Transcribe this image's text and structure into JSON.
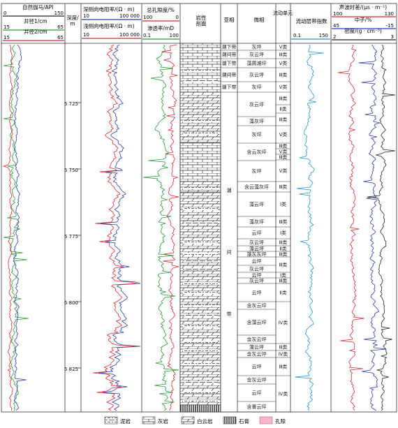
{
  "colors": {
    "green": "#2a9a3a",
    "red": "#d62a36",
    "blue": "#2a3fa6",
    "cyan": "#2a96d6",
    "black": "#222222",
    "pink": "#f2b8c8"
  },
  "headers": {
    "gr": {
      "title": "自然伽马/API",
      "min": "0",
      "max": "150"
    },
    "cal1": {
      "title": "井径1/cm",
      "min": "15",
      "max": "65"
    },
    "cal2": {
      "title": "井径2/cm",
      "min": "15",
      "max": "65"
    },
    "depth": {
      "title": "深度/\nm"
    },
    "lld": {
      "title": "深侧向电阻率/(Ω · m)",
      "min": "10",
      "max": "100 000"
    },
    "lls": {
      "title": "浅侧向电阻率/(Ω · m)",
      "min": "10",
      "max": "100 000"
    },
    "por": {
      "title": "总孔隙度/%",
      "min": "100",
      "max": "0"
    },
    "perm": {
      "title": "渗透率/mD",
      "min": "0.1",
      "max": "100"
    },
    "litho": {
      "title": "岩性\n剖面"
    },
    "subfacies": {
      "title": "亚相"
    },
    "microfacies": {
      "title": "微相"
    },
    "unit": {
      "title": "流动单元"
    },
    "fzi": {
      "title": "流动层带指数",
      "min": "0.1",
      "max": "150"
    },
    "ac": {
      "title": "声波时差/(μs · m⁻¹)",
      "min": "100",
      "max": "130"
    },
    "cnl": {
      "title": "中子/%",
      "min": "45",
      "max": "-15"
    },
    "den": {
      "title": "密度/(g · cm⁻³)",
      "min": "2",
      "max": "3"
    }
  },
  "depth_ticks": [
    "5 725",
    "5 750",
    "5 775",
    "5 800",
    "5 825"
  ],
  "subfacies": [
    {
      "label": "潮下带",
      "y0": 62,
      "y1": 72
    },
    {
      "label": "潮间带",
      "y0": 72,
      "y1": 84
    },
    {
      "label": "潮下带",
      "y0": 84,
      "y1": 97
    },
    {
      "label": "潮间带",
      "y0": 97,
      "y1": 117
    },
    {
      "label": "潮下带",
      "y0": 117,
      "y1": 132
    },
    {
      "label": "潮\n\n\n\n\n\n\n\n\n\n\n间\n\n\n\n\n\n\n\n\n\n\n带",
      "y0": 132,
      "y1": 590
    }
  ],
  "microfacies": [
    {
      "label": "灰坪",
      "y0": 62,
      "y1": 72
    },
    {
      "label": "灰云坪",
      "y0": 72,
      "y1": 84
    },
    {
      "label": "藻屑滩坪",
      "y0": 84,
      "y1": 97
    },
    {
      "label": "灰云坪",
      "y0": 97,
      "y1": 117
    },
    {
      "label": "灰坪",
      "y0": 117,
      "y1": 132
    },
    {
      "label": "灰云坪",
      "y0": 132,
      "y1": 167
    },
    {
      "label": "藻灰坪",
      "y0": 167,
      "y1": 180
    },
    {
      "label": "灰坪",
      "y0": 180,
      "y1": 205
    },
    {
      "label": "含云灰坪",
      "y0": 205,
      "y1": 230
    },
    {
      "label": "灰坪",
      "y0": 230,
      "y1": 260
    },
    {
      "label": "含云藻灰坪",
      "y0": 260,
      "y1": 275
    },
    {
      "label": "藻云坪",
      "y0": 275,
      "y1": 310
    },
    {
      "label": "藻灰坪",
      "y0": 310,
      "y1": 325
    },
    {
      "label": "云坪",
      "y0": 325,
      "y1": 342
    },
    {
      "label": "灰云坪",
      "y0": 342,
      "y1": 352
    },
    {
      "label": "藻云坪",
      "y0": 352,
      "y1": 360
    },
    {
      "label": "藻灰灰坪",
      "y0": 360,
      "y1": 368
    },
    {
      "label": "云坪",
      "y0": 368,
      "y1": 380
    },
    {
      "label": "灰云坪",
      "y0": 380,
      "y1": 390
    },
    {
      "label": "云坪",
      "y0": 390,
      "y1": 398
    },
    {
      "label": "灰云坪",
      "y0": 398,
      "y1": 406
    },
    {
      "label": "云坪",
      "y0": 406,
      "y1": 432
    },
    {
      "label": "含灰云坪",
      "y0": 432,
      "y1": 443
    },
    {
      "label": "含藻云坪",
      "y0": 443,
      "y1": 480
    },
    {
      "label": "含灰云坪",
      "y0": 480,
      "y1": 492
    },
    {
      "label": "藻云坪",
      "y0": 492,
      "y1": 502
    },
    {
      "label": "含灰云坪",
      "y0": 502,
      "y1": 512
    },
    {
      "label": "云坪",
      "y0": 512,
      "y1": 538
    },
    {
      "label": "含灰云坪",
      "y0": 538,
      "y1": 550
    },
    {
      "label": "云坪",
      "y0": 550,
      "y1": 575
    },
    {
      "label": "含膏云坪",
      "y0": 575,
      "y1": 590
    }
  ],
  "units": [
    {
      "label": "Ⅴ类",
      "y0": 62,
      "y1": 72
    },
    {
      "label": "Ⅲ类",
      "y0": 72,
      "y1": 84
    },
    {
      "label": "Ⅴ类",
      "y0": 84,
      "y1": 97
    },
    {
      "label": "Ⅲ类",
      "y0": 97,
      "y1": 117
    },
    {
      "label": "Ⅴ类",
      "y0": 117,
      "y1": 132
    },
    {
      "label": "Ⅲ类",
      "y0": 132,
      "y1": 150
    },
    {
      "label": "Ⅱ类",
      "y0": 150,
      "y1": 162
    },
    {
      "label": "Ⅲ类",
      "y0": 162,
      "y1": 180
    },
    {
      "label": "Ⅴ类",
      "y0": 180,
      "y1": 205
    },
    {
      "label": "Ⅲ类",
      "y0": 205,
      "y1": 213
    },
    {
      "label": "Ⅴ类",
      "y0": 213,
      "y1": 221
    },
    {
      "label": "Ⅲ类",
      "y0": 221,
      "y1": 229
    },
    {
      "label": "Ⅴ类",
      "y0": 229,
      "y1": 260
    },
    {
      "label": "Ⅲ类",
      "y0": 260,
      "y1": 275
    },
    {
      "label": "Ⅰ类",
      "y0": 275,
      "y1": 310
    },
    {
      "label": "Ⅲ类",
      "y0": 310,
      "y1": 325
    },
    {
      "label": "Ⅰ类",
      "y0": 325,
      "y1": 342
    },
    {
      "label": "Ⅲ类",
      "y0": 342,
      "y1": 352
    },
    {
      "label": "Ⅱ类",
      "y0": 352,
      "y1": 360
    },
    {
      "label": "Ⅲ类",
      "y0": 360,
      "y1": 368
    },
    {
      "label": "Ⅲ类",
      "y0": 368,
      "y1": 390
    },
    {
      "label": "Ⅰ类",
      "y0": 390,
      "y1": 398
    },
    {
      "label": "Ⅲ类",
      "y0": 398,
      "y1": 406
    },
    {
      "label": "Ⅱ类",
      "y0": 406,
      "y1": 432
    },
    {
      "label": "Ⅳ类",
      "y0": 432,
      "y1": 492
    },
    {
      "label": "Ⅲ类",
      "y0": 492,
      "y1": 502
    },
    {
      "label": "Ⅳ类",
      "y0": 502,
      "y1": 512
    },
    {
      "label": "Ⅲ类",
      "y0": 512,
      "y1": 538
    },
    {
      "label": "Ⅳ类",
      "y0": 538,
      "y1": 590
    }
  ],
  "legend": [
    {
      "label": "泥岩",
      "pattern": "mud"
    },
    {
      "label": "灰岩",
      "pattern": "lime"
    },
    {
      "label": "白云岩",
      "pattern": "dolo"
    },
    {
      "label": "石膏",
      "pattern": "gyp"
    },
    {
      "label": "孔隙",
      "pattern": "pore"
    }
  ]
}
